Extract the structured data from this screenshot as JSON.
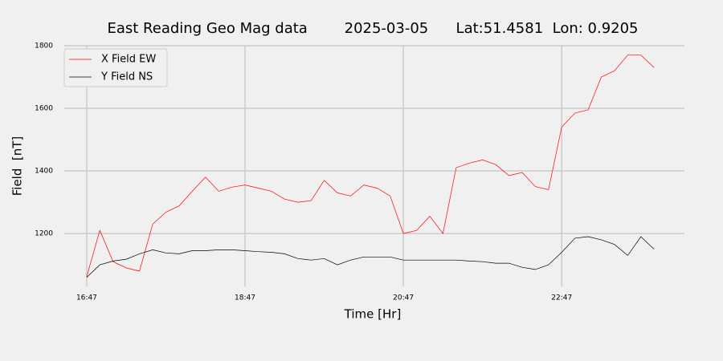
{
  "chart_data": {
    "type": "line",
    "title": "East Reading Geo Mag data        2025-03-05      Lat:51.4581  Lon: 0.9205",
    "x_label": "Time  [Hr]",
    "y_label": "Field  [nT]",
    "x": [
      1007,
      1017,
      1027,
      1037,
      1047,
      1057,
      1067,
      1077,
      1087,
      1097,
      1107,
      1117,
      1127,
      1137,
      1147,
      1157,
      1167,
      1177,
      1187,
      1197,
      1207,
      1217,
      1227,
      1237,
      1247,
      1257,
      1267,
      1277,
      1287,
      1297,
      1307,
      1317,
      1327,
      1337,
      1347,
      1357,
      1367,
      1377,
      1387,
      1397,
      1407,
      1417,
      1427,
      1437
    ],
    "series": [
      {
        "name": "X Field EW",
        "color": "#ff0000",
        "values": [
          1062,
          1210,
          1110,
          1090,
          1080,
          1230,
          1268,
          1288,
          1335,
          1380,
          1335,
          1348,
          1355,
          1345,
          1335,
          1310,
          1300,
          1305,
          1370,
          1330,
          1320,
          1355,
          1345,
          1320,
          1200,
          1210,
          1255,
          1200,
          1410,
          1425,
          1435,
          1420,
          1385,
          1395,
          1350,
          1340,
          1540,
          1585,
          1595,
          1700,
          1720,
          1770,
          1770,
          1730
        ]
      },
      {
        "name": "Y Field NS",
        "color": "#000000",
        "values": [
          1060,
          1100,
          1112,
          1118,
          1135,
          1148,
          1138,
          1135,
          1145,
          1145,
          1148,
          1148,
          1145,
          1142,
          1140,
          1135,
          1120,
          1115,
          1120,
          1100,
          1115,
          1125,
          1125,
          1125,
          1115,
          1115,
          1115,
          1115,
          1115,
          1112,
          1110,
          1105,
          1105,
          1092,
          1085,
          1100,
          1140,
          1185,
          1190,
          1180,
          1165,
          1130,
          1190,
          1150
        ]
      }
    ],
    "xlim": [
      990,
      1460
    ],
    "xticks": [
      {
        "value": 1007,
        "label": "16:47"
      },
      {
        "value": 1127,
        "label": "18:47"
      },
      {
        "value": 1247,
        "label": "20:47"
      },
      {
        "value": 1367,
        "label": "22:47"
      }
    ],
    "ylim": [
      1031,
      1800
    ],
    "yticks": [
      1200,
      1400,
      1600,
      1800
    ],
    "grid": true,
    "legend": "upper-left"
  }
}
